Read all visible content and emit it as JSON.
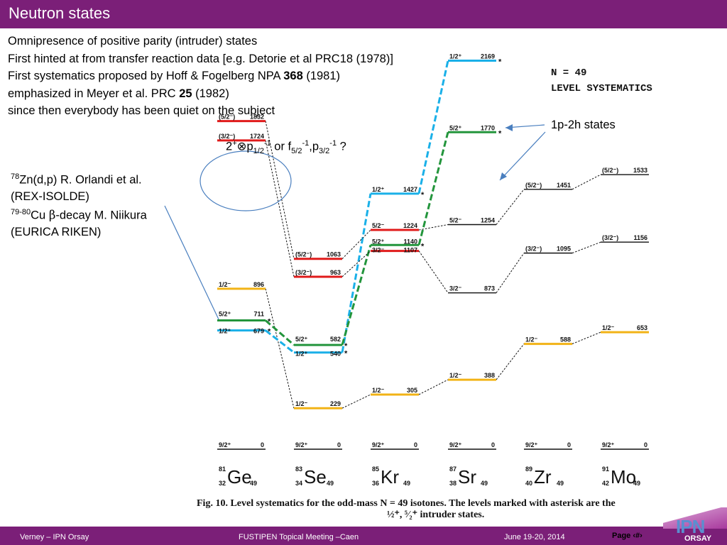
{
  "title": "Neutron states",
  "intro": [
    {
      "text": "Omnipresence of positive parity (intruder) states"
    },
    {
      "text": "First hinted at from transfer reaction data [e.g. Detorie et al PRC18 (1978)]"
    },
    {
      "text": "First systematics proposed by Hoff & Fogelberg NPA ",
      "bold": "368",
      "rest": " (1981)"
    },
    {
      "text": "emphasized in Meyer et al. PRC ",
      "bold": "25",
      "rest": " (1982)"
    },
    {
      "text": "since then everybody has been quiet on the subject"
    }
  ],
  "annotations": {
    "coupling": {
      "a": "2",
      "a_sup": "+",
      "op": "⊗",
      "b": "p",
      "b_sub": "1/2",
      "b_sup": "-1",
      "mid": " or f",
      "c_sub": "5/2",
      "c_sup": "-1",
      "comma": ",p",
      "d_sub": "3/2",
      "d_sup": "-1",
      "tail": " ?"
    },
    "ge_line1_mass": "78",
    "ge_line1": "Zn(d,p) R. Orlandi et al.",
    "ge_line2": "(REX-ISOLDE)",
    "ge_line3_mass": "79-80",
    "ge_line3_a": "Cu ",
    "ge_line3_beta": "β",
    "ge_line3_b": "-decay M. Niikura",
    "ge_line4": "(EURICA RIKEN)",
    "onep2h": "1p-2h states"
  },
  "systematics_header": [
    "N = 49",
    "LEVEL SYSTEMATICS"
  ],
  "colors": {
    "brand": "#7b1f78",
    "blue": "#1ab0e8",
    "green": "#23953c",
    "red": "#e01b1b",
    "orange": "#f2b316",
    "ink": "#111111",
    "arrow": "#4a7fbf"
  },
  "nuclei": [
    {
      "A": "81",
      "Z": "32",
      "sym": "Ge",
      "N": "49"
    },
    {
      "A": "83",
      "Z": "34",
      "sym": "Se",
      "N": "49"
    },
    {
      "A": "85",
      "Z": "36",
      "sym": "Kr",
      "N": "49"
    },
    {
      "A": "87",
      "Z": "38",
      "sym": "Sr",
      "N": "49"
    },
    {
      "A": "89",
      "Z": "40",
      "sym": "Zr",
      "N": "49"
    },
    {
      "A": "91",
      "Z": "42",
      "sym": "Mo",
      "N": "49"
    }
  ],
  "levels": [
    {
      "n": 0,
      "spin": "9/2+",
      "energy": 0,
      "label": "0",
      "color": "ink"
    },
    {
      "n": 0,
      "spin": "5/2+",
      "energy": 711,
      "label": "711",
      "color": "green"
    },
    {
      "n": 0,
      "spin": "1/2+",
      "energy": 679,
      "label": "679",
      "color": "blue"
    },
    {
      "n": 0,
      "spin": "1/2-",
      "energy": 896,
      "label": "896",
      "color": "orange"
    },
    {
      "n": 0,
      "spin": "(3/2-)",
      "energy": 1724,
      "label": "1724",
      "color": "red"
    },
    {
      "n": 0,
      "spin": "(5/2-)",
      "energy": 1832,
      "label": "1832",
      "color": "red"
    },
    {
      "n": 1,
      "spin": "9/2+",
      "energy": 0,
      "label": "0",
      "color": "ink"
    },
    {
      "n": 1,
      "spin": "1/2-",
      "energy": 229,
      "label": "229",
      "color": "orange"
    },
    {
      "n": 1,
      "spin": "1/2+",
      "energy": 540,
      "label": "540",
      "color": "blue"
    },
    {
      "n": 1,
      "spin": "5/2+",
      "energy": 582,
      "label": "582",
      "color": "green"
    },
    {
      "n": 1,
      "spin": "(3/2-)",
      "energy": 963,
      "label": "963",
      "color": "red"
    },
    {
      "n": 1,
      "spin": "(5/2-)",
      "energy": 1063,
      "label": "1063",
      "color": "red"
    },
    {
      "n": 2,
      "spin": "9/2+",
      "energy": 0,
      "label": "0",
      "color": "ink"
    },
    {
      "n": 2,
      "spin": "1/2-",
      "energy": 305,
      "label": "305",
      "color": "orange"
    },
    {
      "n": 2,
      "spin": "3/2-",
      "energy": 1107,
      "label": "1107",
      "color": "red"
    },
    {
      "n": 2,
      "spin": "5/2+",
      "energy": 1140,
      "label": "1140",
      "color": "green"
    },
    {
      "n": 2,
      "spin": "5/2-",
      "energy": 1224,
      "label": "1224",
      "color": "red"
    },
    {
      "n": 2,
      "spin": "1/2+",
      "energy": 1427,
      "label": "1427",
      "color": "blue"
    },
    {
      "n": 3,
      "spin": "9/2+",
      "energy": 0,
      "label": "0",
      "color": "ink"
    },
    {
      "n": 3,
      "spin": "1/2-",
      "energy": 388,
      "label": "388",
      "color": "orange"
    },
    {
      "n": 3,
      "spin": "3/2-",
      "energy": 873,
      "label": "873",
      "color": "ink"
    },
    {
      "n": 3,
      "spin": "5/2-",
      "energy": 1254,
      "label": "1254",
      "color": "ink"
    },
    {
      "n": 3,
      "spin": "5/2+",
      "energy": 1770,
      "label": "1770",
      "color": "green"
    },
    {
      "n": 3,
      "spin": "1/2+",
      "energy": 2169,
      "label": "2169",
      "color": "blue"
    },
    {
      "n": 4,
      "spin": "9/2+",
      "energy": 0,
      "label": "0",
      "color": "ink"
    },
    {
      "n": 4,
      "spin": "1/2-",
      "energy": 588,
      "label": "588",
      "color": "orange"
    },
    {
      "n": 4,
      "spin": "(3/2-)",
      "energy": 1095,
      "label": "1095",
      "color": "ink"
    },
    {
      "n": 4,
      "spin": "(5/2-)",
      "energy": 1451,
      "label": "1451",
      "color": "ink"
    },
    {
      "n": 5,
      "spin": "9/2+",
      "energy": 0,
      "label": "0",
      "color": "ink"
    },
    {
      "n": 5,
      "spin": "1/2-",
      "energy": 653,
      "label": "653",
      "color": "orange"
    },
    {
      "n": 5,
      "spin": "(3/2-)",
      "energy": 1156,
      "label": "1156",
      "color": "ink"
    },
    {
      "n": 5,
      "spin": "(5/2-)",
      "energy": 1533,
      "label": "1533",
      "color": "ink"
    }
  ],
  "connections": [
    {
      "from": [
        0,
        3
      ],
      "to": [
        1,
        7
      ],
      "color": "ink"
    },
    {
      "from": [
        1,
        7
      ],
      "to": [
        2,
        13
      ],
      "color": "ink"
    },
    {
      "from": [
        2,
        13
      ],
      "to": [
        3,
        19
      ],
      "color": "ink"
    },
    {
      "from": [
        3,
        19
      ],
      "to": [
        4,
        25
      ],
      "color": "ink"
    },
    {
      "from": [
        4,
        25
      ],
      "to": [
        5,
        29
      ],
      "color": "ink"
    },
    {
      "from": [
        0,
        2
      ],
      "to": [
        1,
        8
      ],
      "color": "blue"
    },
    {
      "from": [
        1,
        8
      ],
      "to": [
        2,
        17
      ],
      "color": "blue"
    },
    {
      "from": [
        2,
        17
      ],
      "to": [
        3,
        23
      ],
      "color": "blue"
    },
    {
      "from": [
        0,
        1
      ],
      "to": [
        1,
        9
      ],
      "color": "green"
    },
    {
      "from": [
        1,
        9
      ],
      "to": [
        2,
        15
      ],
      "color": "green"
    },
    {
      "from": [
        2,
        15
      ],
      "to": [
        3,
        22
      ],
      "color": "green"
    },
    {
      "from": [
        0,
        4
      ],
      "to": [
        1,
        10
      ],
      "color": "ink"
    },
    {
      "from": [
        0,
        5
      ],
      "to": [
        1,
        11
      ],
      "color": "ink"
    },
    {
      "from": [
        1,
        10
      ],
      "to": [
        2,
        14
      ],
      "color": "ink"
    },
    {
      "from": [
        1,
        11
      ],
      "to": [
        2,
        16
      ],
      "color": "ink"
    },
    {
      "from": [
        2,
        14
      ],
      "to": [
        3,
        20
      ],
      "color": "ink"
    },
    {
      "from": [
        2,
        16
      ],
      "to": [
        3,
        21
      ],
      "color": "ink"
    },
    {
      "from": [
        3,
        20
      ],
      "to": [
        4,
        26
      ],
      "color": "ink"
    },
    {
      "from": [
        3,
        21
      ],
      "to": [
        4,
        27
      ],
      "color": "ink"
    },
    {
      "from": [
        4,
        26
      ],
      "to": [
        5,
        30
      ],
      "color": "ink"
    },
    {
      "from": [
        4,
        27
      ],
      "to": [
        5,
        31
      ],
      "color": "ink"
    }
  ],
  "caption": {
    "line1": "Fig. 10. Level systematics for the odd-mass N = 49 isotones. The levels marked with asterisk are the",
    "line2": "½⁺, ⁵⁄₂⁺ intruder states."
  },
  "footer": {
    "author": "Verney – IPN Orsay",
    "meeting": "FUSTIPEN Topical Meeting –Caen",
    "date": "June 19-20, 2014",
    "page": "Page ‹#›"
  },
  "logo": {
    "ipn": "IPN",
    "orsay": "ORSAY"
  }
}
